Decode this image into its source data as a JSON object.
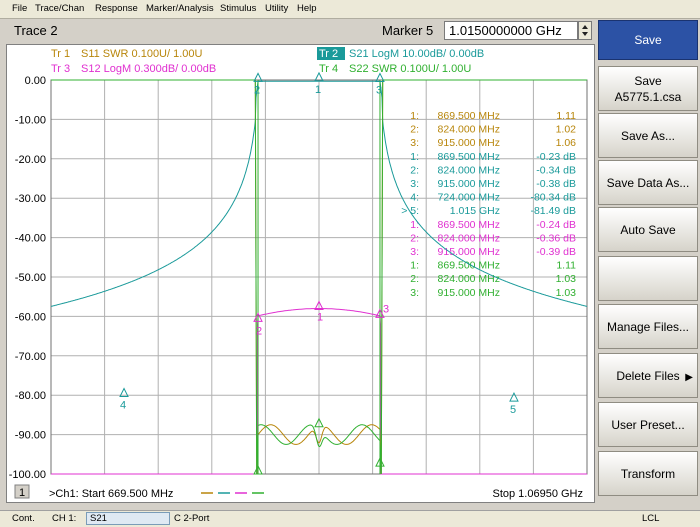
{
  "menu": [
    "File",
    "Trace/Chan",
    "Response",
    "Marker/Analysis",
    "Stimulus",
    "Utility",
    "Help"
  ],
  "title": "Trace 2",
  "marker": {
    "label": "Marker 5",
    "value": "1.0150000000 GHz"
  },
  "colors": {
    "tr1": "#b8860b",
    "tr2": "#1a9a9a",
    "tr3": "#e030d0",
    "tr4": "#30b030",
    "grid": "#b0b0b0",
    "softkey_primary": "#2c52a5"
  },
  "traces": [
    {
      "id": "Tr 1",
      "text": "S11 SWR 0.100U/  1.00U",
      "color": "#b8860b",
      "active": false
    },
    {
      "id": "Tr 2",
      "text": "S21 LogM 10.00dB/  0.00dB",
      "color": "#1a9a9a",
      "active": true
    },
    {
      "id": "Tr 3",
      "text": "S12 LogM 0.300dB/  0.00dB",
      "color": "#e030d0",
      "active": false
    },
    {
      "id": "Tr 4",
      "text": "S22 SWR 0.100U/  1.00U",
      "color": "#30b030",
      "active": false
    }
  ],
  "marker_table": [
    {
      "n": "1:",
      "freq": "869.500 MHz",
      "val": "1.11",
      "color": "#b8860b"
    },
    {
      "n": "2:",
      "freq": "824.000 MHz",
      "val": "1.02",
      "color": "#b8860b"
    },
    {
      "n": "3:",
      "freq": "915.000 MHz",
      "val": "1.06",
      "color": "#b8860b"
    },
    {
      "n": "1:",
      "freq": "869.500 MHz",
      "val": "-0.23 dB",
      "color": "#1a9a9a"
    },
    {
      "n": "2:",
      "freq": "824.000 MHz",
      "val": "-0.34 dB",
      "color": "#1a9a9a"
    },
    {
      "n": "3:",
      "freq": "915.000 MHz",
      "val": "-0.38 dB",
      "color": "#1a9a9a"
    },
    {
      "n": "4:",
      "freq": "724.000 MHz",
      "val": "-80.34 dB",
      "color": "#1a9a9a"
    },
    {
      "n": "> 5:",
      "freq": "1.015 GHz",
      "val": "-81.49 dB",
      "color": "#1a9a9a"
    },
    {
      "n": "1:",
      "freq": "869.500 MHz",
      "val": "-0.24 dB",
      "color": "#e030d0"
    },
    {
      "n": "2:",
      "freq": "824.000 MHz",
      "val": "-0.36 dB",
      "color": "#e030d0"
    },
    {
      "n": "3:",
      "freq": "915.000 MHz",
      "val": "-0.39 dB",
      "color": "#e030d0"
    },
    {
      "n": "1:",
      "freq": "869.500 MHz",
      "val": "1.11",
      "color": "#30b030"
    },
    {
      "n": "2:",
      "freq": "824.000 MHz",
      "val": "1.03",
      "color": "#30b030"
    },
    {
      "n": "3:",
      "freq": "915.000 MHz",
      "val": "1.03",
      "color": "#30b030"
    }
  ],
  "y_ticks": [
    "0.00",
    "-10.00",
    "-20.00",
    "-30.00",
    "-40.00",
    "-50.00",
    "-60.00",
    "-70.00",
    "-80.00",
    "-90.00",
    "-100.00"
  ],
  "footer": {
    "channel_num": "1",
    "start": ">Ch1: Start  669.500 MHz",
    "stop": "Stop  1.06950 GHz"
  },
  "softkeys": [
    {
      "label": "Save",
      "primary": true,
      "arrow": false
    },
    {
      "label": "Save\nA5775.1.csa",
      "primary": false,
      "arrow": false
    },
    {
      "label": "Save As...",
      "primary": false,
      "arrow": false
    },
    {
      "label": "Save Data As...",
      "primary": false,
      "arrow": false
    },
    {
      "label": "Auto Save",
      "primary": false,
      "arrow": false
    },
    {
      "label": "",
      "primary": false,
      "arrow": false
    },
    {
      "label": "Manage Files...",
      "primary": false,
      "arrow": false
    },
    {
      "label": "Delete Files",
      "primary": false,
      "arrow": true
    },
    {
      "label": "User Preset...",
      "primary": false,
      "arrow": false
    },
    {
      "label": "Transform",
      "primary": false,
      "arrow": false
    }
  ],
  "status": {
    "cont": "Cont.",
    "ch": "CH 1:",
    "meas": "S21",
    "port": "C  2-Port",
    "lcl": "LCL"
  },
  "chart_data": {
    "type": "line",
    "x_range_mhz": [
      669.5,
      1069.5
    ],
    "ylim": [
      -100,
      0
    ],
    "y_units": "dB",
    "grid": true,
    "marker_labels": [
      "1",
      "2",
      "3",
      "4",
      "5"
    ],
    "markers_s21": [
      {
        "n": 1,
        "x": 869.5,
        "y": -0.23
      },
      {
        "n": 2,
        "x": 824.0,
        "y": -0.34
      },
      {
        "n": 3,
        "x": 915.0,
        "y": -0.38
      },
      {
        "n": 4,
        "x": 724.0,
        "y": -80.34
      },
      {
        "n": 5,
        "x": 1015.0,
        "y": -81.49
      }
    ]
  }
}
